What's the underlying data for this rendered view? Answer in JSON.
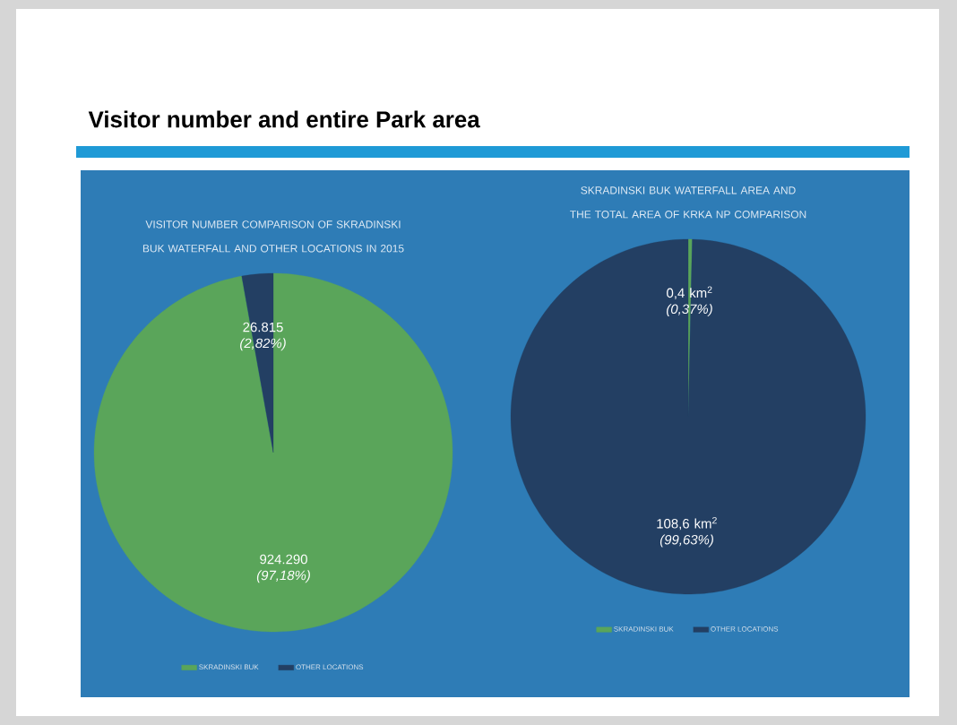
{
  "chart_data": [
    {
      "type": "pie",
      "title": "VISITOR NUMBER COMPARISON OF SKRADINSKI BUK WATERFALL AND OTHER LOCATIONS IN 2015",
      "annotations": [
        "Visitor number and entire Park area"
      ],
      "categories": [
        "SKRADINSKI BUK",
        "OTHER LOCATIONS"
      ],
      "values": [
        924290,
        26815
      ],
      "colors": [
        "#5aa55a",
        "#233f63"
      ],
      "value_labels": [
        "924.290 *(97,18%)*",
        "26.815 *(2,82%)*"
      ],
      "legend": "bottom"
    },
    {
      "type": "pie",
      "title": "SKRADINSKI BUK WATERFALL AREA AND THE TOTAL AREA OF KRKA NP COMPARISON",
      "categories": [
        "SKRADINSKI BUK",
        "OTHER LOCATIONS"
      ],
      "values": [
        0.4,
        108.6
      ],
      "colors": [
        "#5aa55a",
        "#233f63"
      ],
      "value_labels": [
        "0,4 km$^{2}$ *(0,37%)*",
        "108,6 km$^{2}$ *(99,63%)*"
      ],
      "legend": "bottom"
    }
  ]
}
